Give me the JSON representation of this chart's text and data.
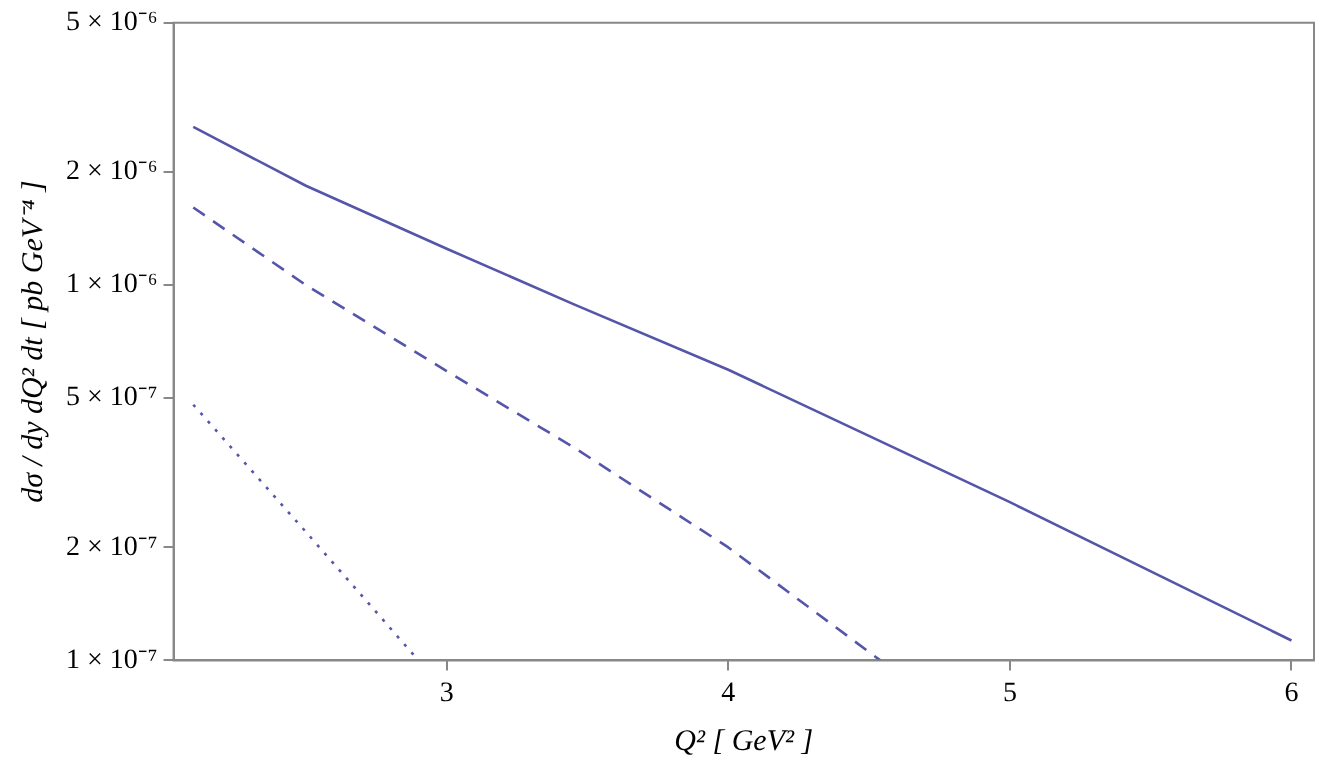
{
  "chart_data": {
    "type": "line",
    "xlabel": "Q² [ GeV² ]",
    "ylabel": "dσ / dy dQ² dt [ pb GeV⁻⁴ ]",
    "log": "y",
    "grid": false,
    "legend": false,
    "marker": "none",
    "xlim": [
      2.03,
      6.08
    ],
    "xticks": [
      3,
      4,
      5,
      6
    ],
    "ylim": [
      1e-07,
      5e-06
    ],
    "yticks": [
      {
        "value": 1e-07,
        "label": "1 × 10⁻⁷"
      },
      {
        "value": 2e-07,
        "label": "2 × 10⁻⁷"
      },
      {
        "value": 5e-07,
        "label": "5 × 10⁻⁷"
      },
      {
        "value": 1e-06,
        "label": "1 × 10⁻⁶"
      },
      {
        "value": 2e-06,
        "label": "2 × 10⁻⁶"
      },
      {
        "value": 5e-06,
        "label": "5 × 10⁻⁶"
      }
    ],
    "series": [
      {
        "color": "#5555aa",
        "line_style": "solid",
        "x": [
          2.1,
          2.5,
          3.0,
          3.45,
          4.0,
          5.0,
          6.0
        ],
        "values": [
          2.64e-06,
          1.84e-06,
          1.25e-06,
          8.9e-07,
          5.95e-07,
          2.64e-07,
          1.13e-07
        ]
      },
      {
        "color": "#5555aa",
        "line_style": "dashed",
        "x": [
          2.1,
          2.5,
          3.0,
          3.45,
          4.0,
          4.54
        ],
        "values": [
          1.61e-06,
          1e-06,
          5.9e-07,
          3.7e-07,
          2e-07,
          1e-07
        ]
      },
      {
        "color": "#5555aa",
        "line_style": "dotted",
        "x": [
          2.1,
          2.5,
          2.9
        ],
        "values": [
          4.8e-07,
          2.2e-07,
          1e-07
        ]
      }
    ]
  }
}
